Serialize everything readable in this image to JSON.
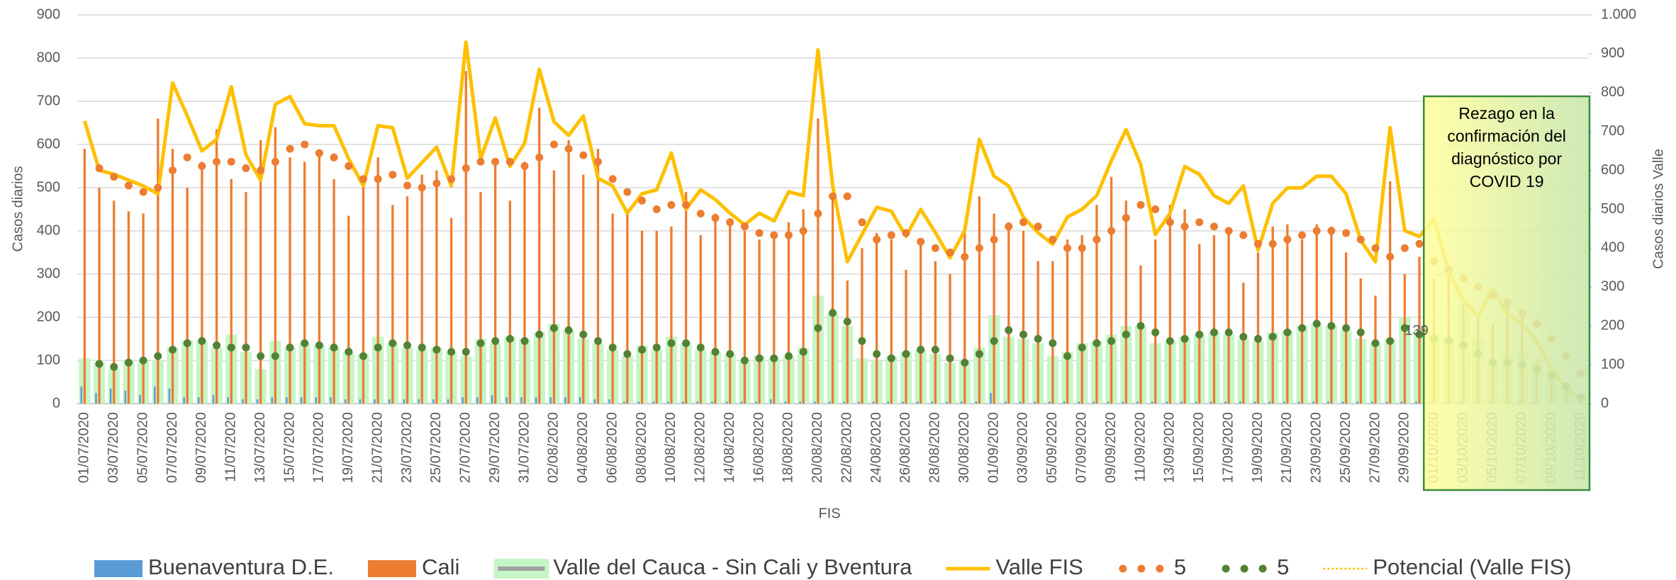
{
  "chart_data": {
    "type": "combo",
    "xlabel": "FIS",
    "ylabel": "Casos diarios",
    "y2label": "Casos diarios Valle",
    "categories": [
      "01/07/2020",
      null,
      "03/07/2020",
      null,
      "05/07/2020",
      null,
      "07/07/2020",
      null,
      "09/07/2020",
      null,
      "11/07/2020",
      null,
      "13/07/2020",
      null,
      "15/07/2020",
      null,
      "17/07/2020",
      null,
      "19/07/2020",
      null,
      "21/07/2020",
      null,
      "23/07/2020",
      null,
      "25/07/2020",
      null,
      "27/07/2020",
      null,
      "29/07/2020",
      null,
      "31/07/2020",
      null,
      "02/08/2020",
      null,
      "04/08/2020",
      null,
      "06/08/2020",
      null,
      "08/08/2020",
      null,
      "10/08/2020",
      null,
      "12/08/2020",
      null,
      "14/08/2020",
      null,
      "16/08/2020",
      null,
      "18/08/2020",
      null,
      "20/08/2020",
      null,
      "22/08/2020",
      null,
      "24/08/2020",
      null,
      "26/08/2020",
      null,
      "28/08/2020",
      null,
      "30/08/2020",
      null,
      "01/09/2020",
      null,
      "03/09/2020",
      null,
      "05/09/2020",
      null,
      "07/09/2020",
      null,
      "09/09/2020",
      null,
      "11/09/2020",
      null,
      "13/09/2020",
      null,
      "15/09/2020",
      null,
      "17/09/2020",
      null,
      "19/09/2020",
      null,
      "21/09/2020",
      null,
      "23/09/2020",
      null,
      "25/09/2020",
      null,
      "27/09/2020",
      null,
      "29/09/2020",
      null,
      "01/10/2020",
      null,
      "03/10/2020",
      null,
      "05/10/2020",
      null,
      "07/10/2020",
      null,
      "09/10/2020",
      null,
      "11/10/2020"
    ],
    "series": [
      {
        "name": "Valle del Cauca - Sin Cali y Bventura",
        "kind": "bar",
        "color": "#c6f5c6",
        "legend_color": "#a0a0a0",
        "values": [
          105,
          95,
          80,
          100,
          100,
          100,
          130,
          145,
          145,
          130,
          160,
          120,
          80,
          145,
          130,
          140,
          135,
          130,
          120,
          115,
          155,
          140,
          130,
          125,
          130,
          120,
          110,
          150,
          140,
          155,
          150,
          165,
          185,
          170,
          150,
          140,
          125,
          110,
          135,
          125,
          155,
          140,
          125,
          120,
          115,
          100,
          110,
          105,
          110,
          130,
          250,
          210,
          180,
          105,
          100,
          110,
          120,
          125,
          115,
          95,
          100,
          130,
          205,
          155,
          150,
          140,
          110,
          120,
          140,
          145,
          160,
          180,
          180,
          140,
          145,
          155,
          160,
          165,
          160,
          150,
          145,
          165,
          170,
          180,
          185,
          180,
          170,
          150,
          140,
          150,
          200,
          170,
          160,
          150,
          230,
          150,
          100,
          120,
          120,
          100,
          80,
          50,
          20
        ]
      },
      {
        "name": "Cali",
        "kind": "bar",
        "color": "#ed7d31",
        "values": [
          590,
          500,
          470,
          445,
          440,
          660,
          590,
          500,
          560,
          635,
          520,
          490,
          610,
          640,
          570,
          560,
          580,
          520,
          435,
          510,
          570,
          460,
          480,
          530,
          540,
          430,
          770,
          490,
          560,
          470,
          560,
          685,
          540,
          610,
          530,
          590,
          440,
          450,
          400,
          400,
          410,
          490,
          390,
          440,
          420,
          400,
          380,
          385,
          420,
          450,
          660,
          480,
          285,
          360,
          395,
          380,
          310,
          380,
          330,
          300,
          400,
          480,
          440,
          420,
          400,
          330,
          330,
          380,
          390,
          460,
          525,
          470,
          320,
          380,
          460,
          450,
          370,
          390,
          405,
          280,
          350,
          410,
          415,
          380,
          415,
          410,
          350,
          290,
          250,
          515,
          300,
          340,
          290,
          320,
          230,
          200,
          185,
          230,
          200,
          100,
          60,
          30,
          10
        ]
      },
      {
        "name": "Buenaventura D.E.",
        "kind": "bar",
        "color": "#5b9bd5",
        "values": [
          40,
          25,
          35,
          30,
          20,
          40,
          35,
          15,
          15,
          20,
          15,
          10,
          10,
          15,
          15,
          15,
          15,
          15,
          10,
          10,
          10,
          10,
          10,
          10,
          10,
          10,
          15,
          15,
          20,
          15,
          15,
          15,
          15,
          15,
          15,
          10,
          10,
          5,
          5,
          5,
          5,
          5,
          5,
          5,
          5,
          5,
          5,
          10,
          5,
          5,
          5,
          5,
          5,
          5,
          5,
          5,
          5,
          5,
          5,
          5,
          5,
          5,
          25,
          5,
          5,
          5,
          5,
          5,
          5,
          5,
          5,
          5,
          5,
          5,
          5,
          5,
          5,
          5,
          5,
          5,
          5,
          5,
          5,
          5,
          5,
          5,
          5,
          5,
          5,
          5,
          5,
          5,
          5,
          5,
          5,
          5,
          5,
          5,
          5,
          5,
          0,
          0,
          0
        ]
      },
      {
        "name": "Valle FIS",
        "kind": "line",
        "axis": "y2",
        "color": "#ffc000",
        "values": [
          727,
          600,
          590,
          575,
          560,
          540,
          825,
          740,
          650,
          680,
          815,
          640,
          575,
          770,
          790,
          720,
          715,
          715,
          630,
          560,
          715,
          710,
          580,
          620,
          660,
          560,
          930,
          630,
          735,
          610,
          670,
          860,
          725,
          690,
          740,
          580,
          560,
          490,
          540,
          550,
          645,
          500,
          550,
          525,
          490,
          460,
          490,
          470,
          545,
          535,
          910,
          560,
          365,
          435,
          505,
          495,
          430,
          500,
          440,
          375,
          445,
          680,
          585,
          560,
          480,
          440,
          410,
          480,
          500,
          535,
          625,
          705,
          615,
          435,
          490,
          610,
          590,
          535,
          515,
          560,
          395,
          515,
          555,
          555,
          585,
          585,
          540,
          420,
          365,
          710,
          445,
          430,
          475,
          340,
          265,
          225,
          295,
          230,
          205,
          160,
          90,
          40,
          10
        ]
      },
      {
        "name": "5",
        "kind": "dots",
        "color": "#ed7d31",
        "values": [
          null,
          545,
          525,
          505,
          490,
          500,
          540,
          570,
          550,
          560,
          560,
          545,
          540,
          560,
          590,
          600,
          580,
          570,
          550,
          520,
          520,
          530,
          505,
          500,
          510,
          520,
          545,
          560,
          560,
          560,
          550,
          570,
          600,
          590,
          575,
          560,
          520,
          490,
          470,
          450,
          460,
          460,
          440,
          430,
          420,
          410,
          395,
          390,
          390,
          400,
          440,
          480,
          480,
          420,
          380,
          390,
          395,
          375,
          360,
          350,
          340,
          360,
          380,
          410,
          420,
          410,
          380,
          360,
          360,
          380,
          400,
          430,
          460,
          450,
          420,
          410,
          420,
          410,
          400,
          390,
          370,
          370,
          380,
          390,
          400,
          400,
          395,
          380,
          360,
          340,
          360,
          370,
          330,
          310,
          290,
          270,
          250,
          235,
          210,
          185,
          150,
          110,
          70
        ]
      },
      {
        "name": "5",
        "kind": "dots",
        "color": "#548235",
        "values": [
          null,
          92,
          85,
          95,
          100,
          110,
          125,
          140,
          145,
          135,
          130,
          130,
          110,
          110,
          130,
          140,
          135,
          130,
          120,
          110,
          130,
          140,
          135,
          130,
          125,
          120,
          120,
          140,
          145,
          150,
          145,
          160,
          175,
          170,
          160,
          145,
          130,
          115,
          125,
          130,
          140,
          140,
          130,
          120,
          115,
          100,
          105,
          105,
          110,
          120,
          175,
          210,
          190,
          145,
          115,
          105,
          115,
          125,
          125,
          105,
          95,
          115,
          145,
          170,
          160,
          150,
          140,
          110,
          130,
          140,
          145,
          160,
          180,
          165,
          145,
          150,
          160,
          165,
          165,
          155,
          150,
          155,
          165,
          175,
          185,
          180,
          175,
          165,
          140,
          145,
          175,
          160,
          150,
          145,
          135,
          115,
          95,
          95,
          90,
          80,
          65,
          40,
          15
        ]
      },
      {
        "name": "Potencial (Valle FIS)",
        "kind": "trend",
        "axis": "y2",
        "color": "#ffc000"
      }
    ],
    "legend_order": [
      2,
      1,
      0,
      3,
      4,
      5,
      6
    ],
    "ylim": [
      0,
      900
    ],
    "yticks": [
      0,
      100,
      200,
      300,
      400,
      500,
      600,
      700,
      800,
      900
    ],
    "y2lim": [
      0,
      1000
    ],
    "y2ticks": [
      0,
      100,
      200,
      300,
      400,
      500,
      600,
      700,
      800,
      900,
      {
        "value": 1000,
        "label": "1.000"
      }
    ],
    "grid": true,
    "annotations": [
      "Rezago en la confirmación del diagnóstico por COVID 19",
      "139"
    ]
  }
}
